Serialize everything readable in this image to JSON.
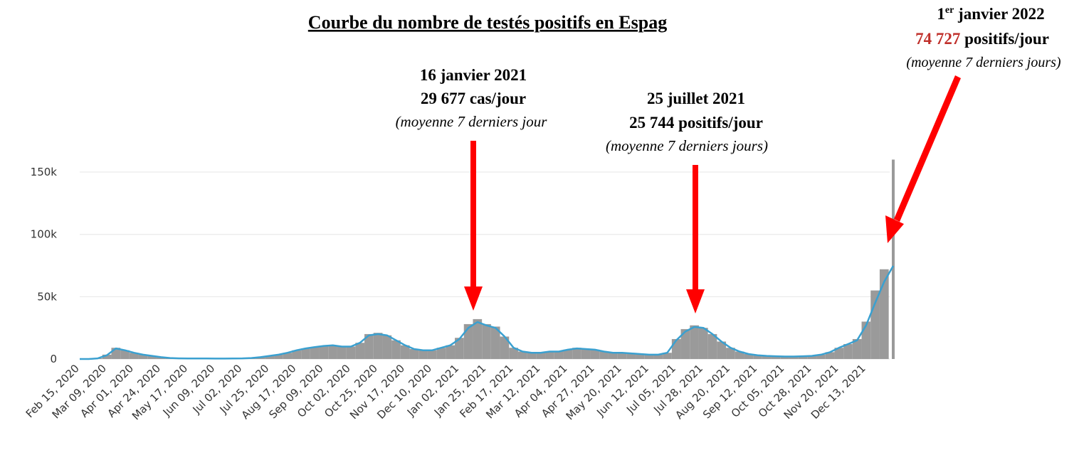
{
  "chart_data": {
    "type": "combo",
    "title": "Courbe du nombre de testés positifs en Espag",
    "categories": [
      "Feb 15, 2020",
      null,
      null,
      "Mar 09, 2020",
      null,
      null,
      "Apr 01, 2020",
      null,
      null,
      "Apr 24, 2020",
      null,
      null,
      "May 17, 2020",
      null,
      null,
      "Jun 09, 2020",
      null,
      null,
      "Jul 02, 2020",
      null,
      null,
      "Jul 25, 2020",
      null,
      null,
      "Aug 17, 2020",
      null,
      null,
      "Sep 09, 2020",
      null,
      null,
      "Oct 02, 2020",
      null,
      null,
      "Oct 25, 2020",
      null,
      null,
      "Nov 17, 2020",
      null,
      null,
      "Dec 10, 2020",
      null,
      null,
      "Jan 02, 2021",
      null,
      null,
      "Jan 25, 2021",
      null,
      null,
      "Feb 17, 2021",
      null,
      null,
      "Mar 12, 2021",
      null,
      null,
      "Apr 04, 2021",
      null,
      null,
      "Apr 27, 2021",
      null,
      null,
      "May 20, 2021",
      null,
      null,
      "Jun 12, 2021",
      null,
      null,
      "Jul 05, 2021",
      null,
      null,
      "Jul 28, 2021",
      null,
      null,
      "Aug 20, 2021",
      null,
      null,
      "Sep 12, 2021",
      null,
      null,
      "Oct 05, 2021",
      null,
      null,
      "Oct 28, 2021",
      null,
      null,
      "Nov 20, 2021",
      null,
      null,
      "Dec 13, 2021",
      null,
      null,
      null
    ],
    "series": [
      {
        "type": "bar",
        "color": "#9a9a9a",
        "values": [
          0,
          0,
          600,
          3500,
          9000,
          7000,
          5000,
          3500,
          2500,
          1500,
          800,
          500,
          400,
          400,
          400,
          350,
          350,
          400,
          500,
          800,
          1500,
          2500,
          3500,
          5000,
          7000,
          8500,
          9500,
          10500,
          11000,
          10000,
          10000,
          13000,
          20000,
          21000,
          19000,
          15000,
          11000,
          8000,
          7000,
          7000,
          9000,
          11000,
          17000,
          28000,
          32000,
          28000,
          26000,
          18000,
          9000,
          6000,
          5000,
          5000,
          6000,
          6000,
          7500,
          9000,
          8000,
          7500,
          6000,
          5000,
          5000,
          4500,
          4000,
          3500,
          3500,
          5000,
          16000,
          24000,
          27000,
          25000,
          20000,
          14000,
          9000,
          6000,
          4000,
          3000,
          2500,
          2200,
          2000,
          2000,
          2200,
          2500,
          3500,
          5500,
          9000,
          12000,
          16000,
          30000,
          55000,
          72000,
          160000
        ]
      },
      {
        "type": "line",
        "color": "#3aa0d0",
        "values": [
          0,
          0,
          500,
          3000,
          8500,
          7000,
          5000,
          3500,
          2500,
          1500,
          800,
          500,
          400,
          400,
          400,
          350,
          350,
          400,
          500,
          800,
          1500,
          2500,
          3500,
          5000,
          7000,
          8500,
          9500,
          10500,
          11000,
          10000,
          10000,
          13000,
          19000,
          20000,
          19000,
          15000,
          11000,
          8000,
          7000,
          7000,
          9000,
          11000,
          16000,
          25000,
          29677,
          27000,
          25000,
          18000,
          9000,
          6000,
          5000,
          5000,
          6000,
          6000,
          7500,
          8500,
          8000,
          7500,
          6000,
          5000,
          5000,
          4500,
          4000,
          3500,
          3500,
          5000,
          15000,
          22000,
          25744,
          25000,
          20000,
          14000,
          9000,
          6000,
          4000,
          3000,
          2500,
          2200,
          2000,
          2000,
          2200,
          2500,
          3500,
          5500,
          9000,
          12000,
          15000,
          27000,
          45000,
          62000,
          74727
        ]
      }
    ],
    "ylim": [
      0,
      160000
    ],
    "yticks": [
      {
        "value": 0,
        "label": "0"
      },
      {
        "value": 50000,
        "label": "50k"
      },
      {
        "value": 100000,
        "label": "100k"
      },
      {
        "value": 150000,
        "label": "150k"
      }
    ],
    "grid": true,
    "annotations": [
      {
        "date": "16 janvier 2021",
        "value_text": "29 677 cas/jour",
        "note": "(moyenne 7 derniers jour"
      },
      {
        "date": "25 juillet 2021",
        "value_text": "25 744 positifs/jour",
        "note": "(moyenne 7 derniers jours)"
      },
      {
        "date_day": "1",
        "date_sup": "er",
        "date_rest": " janvier 2022",
        "value_number": "74 727",
        "value_unit": " positifs/jour",
        "note": "(moyenne 7 derniers jours)"
      }
    ]
  }
}
